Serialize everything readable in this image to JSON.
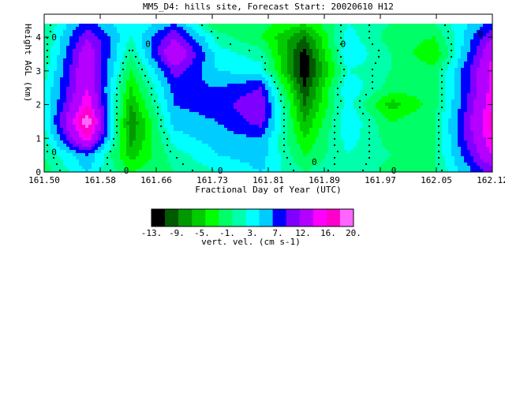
{
  "chart_data": {
    "type": "heatmap",
    "title": "MM5_D4: hills site,  Forecast Start: 20020610 H12",
    "xlabel": "Fractional Day of Year (UTC)",
    "ylabel": "Height AGL (km)",
    "x_ticks": [
      "161.50",
      "161.58",
      "161.66",
      "161.73",
      "161.81",
      "161.89",
      "161.97",
      "162.05",
      "162.12"
    ],
    "y_ticks": [
      "0",
      "1",
      "2",
      "3",
      "4"
    ],
    "xlim": [
      161.5,
      162.12
    ],
    "ylim": [
      0,
      4.4
    ],
    "contour_zero_labels": [
      "0",
      "0",
      "0",
      "0",
      "0",
      "0",
      "0",
      "0",
      "0"
    ],
    "colorbar": {
      "label": "vert. vel. (cm s-1)",
      "tick_labels": [
        "-13.",
        "-9.",
        "-5.",
        "-1.",
        "3.",
        "7.",
        "12.",
        "16.",
        "20."
      ],
      "levels": [
        -13,
        -11,
        -9,
        -7,
        -5,
        -3,
        -1,
        1,
        3,
        5,
        7,
        9,
        12,
        14,
        16,
        18,
        20
      ],
      "colors": [
        "#000000",
        "#005a00",
        "#009900",
        "#00cc00",
        "#00ff00",
        "#00ff66",
        "#00ffaa",
        "#00ffff",
        "#00ccff",
        "#0000ff",
        "#7f00ff",
        "#b300ff",
        "#ff00ff",
        "#ff00cc",
        "#ff66ff"
      ]
    },
    "grid": {
      "x": [
        161.5,
        161.56,
        161.62,
        161.68,
        161.74,
        161.8,
        161.86,
        161.92,
        161.98,
        162.04,
        162.12
      ],
      "y": [
        0,
        0.5,
        1,
        1.5,
        2,
        2.5,
        3,
        3.5,
        4,
        4.4
      ],
      "values": [
        [
          -2,
          3,
          -3,
          -1,
          1,
          3,
          -1,
          1,
          -2,
          -1,
          8
        ],
        [
          -1,
          5,
          -6,
          0,
          3,
          4,
          -3,
          1,
          -1,
          -1,
          12
        ],
        [
          0,
          14,
          -8,
          2,
          4,
          5,
          -5,
          2,
          -2,
          -1,
          14
        ],
        [
          1,
          18,
          -9,
          4,
          5,
          8,
          -7,
          3,
          -3,
          -1,
          15
        ],
        [
          1,
          14,
          -7,
          5,
          6,
          9,
          -9,
          2,
          -6,
          -2,
          14
        ],
        [
          1,
          12,
          -5,
          6,
          5,
          7,
          -11,
          3,
          -2,
          -2,
          13
        ],
        [
          0,
          12,
          -3,
          8,
          3,
          2,
          -13,
          1,
          -1,
          -2,
          13
        ],
        [
          -1,
          11,
          -1,
          12,
          2,
          0,
          -12,
          3,
          -1,
          -5,
          12
        ],
        [
          -1,
          9,
          1,
          9,
          0,
          -3,
          -9,
          2,
          -2,
          -3,
          9
        ],
        [
          -1,
          6,
          1,
          5,
          -3,
          -2,
          -5,
          1,
          -1,
          -1,
          6
        ]
      ]
    }
  }
}
